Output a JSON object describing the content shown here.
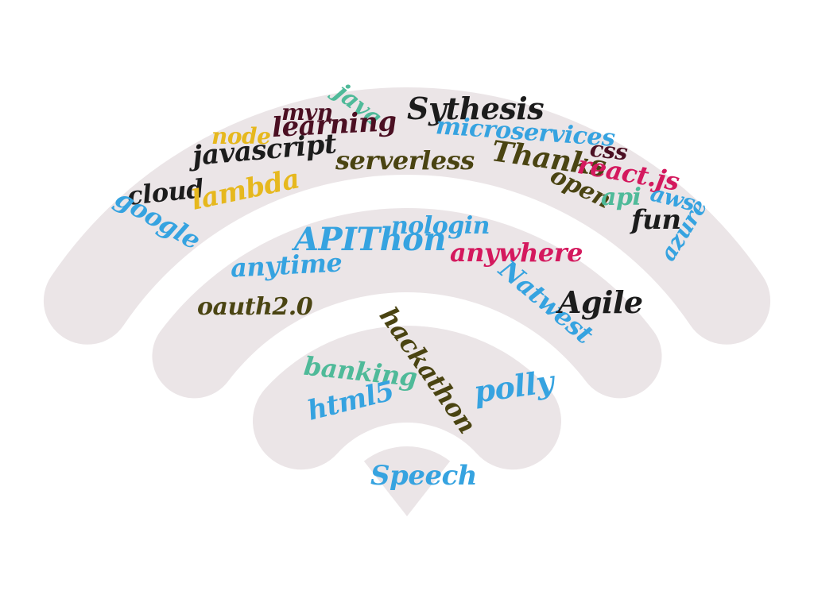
{
  "palette": {
    "background": "#ffffff",
    "arc": "#ebe5e7",
    "black": "#1c1c1c",
    "blue": "#36a3e0",
    "teal": "#4fba99",
    "olive": "#4a4412",
    "maroon": "#4b0f22",
    "crimson": "#d4195e",
    "gold": "#e6b81e"
  },
  "words": [
    {
      "id": "mvn",
      "text": "mvn",
      "color": "maroon"
    },
    {
      "id": "java",
      "text": "java",
      "color": "teal"
    },
    {
      "id": "sythesis",
      "text": "Sythesis",
      "color": "black"
    },
    {
      "id": "learning",
      "text": "learning",
      "color": "maroon"
    },
    {
      "id": "node",
      "text": "node",
      "color": "gold"
    },
    {
      "id": "microservices",
      "text": "microservices",
      "color": "blue"
    },
    {
      "id": "javascript",
      "text": "javascript",
      "color": "black"
    },
    {
      "id": "css",
      "text": "css",
      "color": "maroon"
    },
    {
      "id": "serverless",
      "text": "serverless",
      "color": "olive"
    },
    {
      "id": "thanks",
      "text": "Thanks",
      "color": "olive"
    },
    {
      "id": "react",
      "text": "react.js",
      "color": "crimson"
    },
    {
      "id": "cloud",
      "text": "cloud",
      "color": "black"
    },
    {
      "id": "lambda",
      "text": "lambda",
      "color": "gold"
    },
    {
      "id": "open",
      "text": "open",
      "color": "olive"
    },
    {
      "id": "api",
      "text": "api",
      "color": "teal"
    },
    {
      "id": "aws",
      "text": "aws",
      "color": "blue"
    },
    {
      "id": "google",
      "text": "google",
      "color": "blue"
    },
    {
      "id": "fun",
      "text": "fun",
      "color": "black"
    },
    {
      "id": "azure",
      "text": "azure",
      "color": "blue"
    },
    {
      "id": "nologin",
      "text": "nologin",
      "color": "blue"
    },
    {
      "id": "apithon",
      "text": "APIThon",
      "color": "blue"
    },
    {
      "id": "anywhere",
      "text": "anywhere",
      "color": "crimson"
    },
    {
      "id": "anytime",
      "text": "anytime",
      "color": "blue"
    },
    {
      "id": "natwest",
      "text": "Natwest",
      "color": "blue"
    },
    {
      "id": "agile",
      "text": "Agile",
      "color": "black"
    },
    {
      "id": "oauth",
      "text": "oauth2.0",
      "color": "olive"
    },
    {
      "id": "hackathon",
      "text": "hackathon",
      "color": "olive"
    },
    {
      "id": "banking",
      "text": "banking",
      "color": "teal"
    },
    {
      "id": "polly",
      "text": "polly",
      "color": "blue"
    },
    {
      "id": "html5",
      "text": "html5",
      "color": "blue"
    },
    {
      "id": "speech",
      "text": "Speech",
      "color": "blue"
    }
  ]
}
